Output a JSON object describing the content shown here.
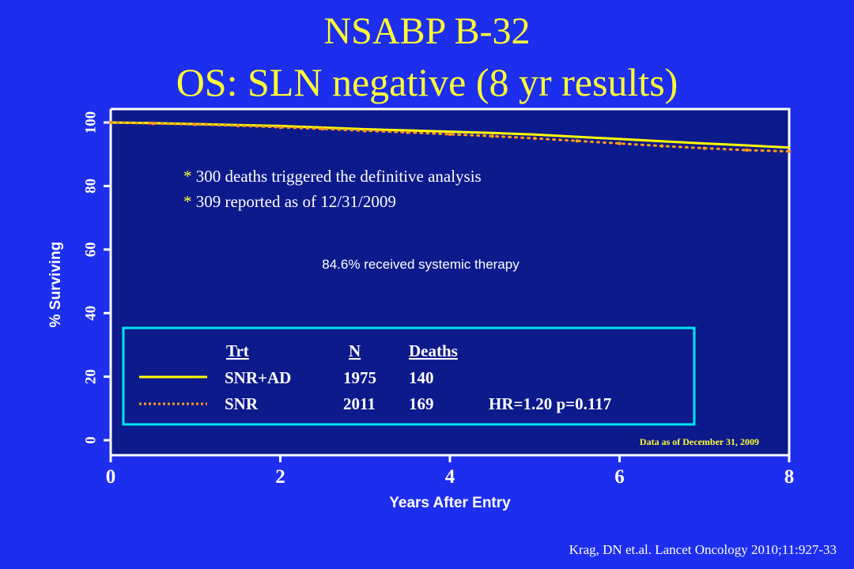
{
  "slide": {
    "title_line1": "NSABP B-32",
    "title_line2": "OS: SLN negative (8 yr results)",
    "citation": "Krag, DN et.al.  Lancet Oncology 2010;11:927-33"
  },
  "colors": {
    "background": "#1d2eee",
    "plot_area": "#0d1a8c",
    "title": "#ffff33",
    "legend_border": "#00e5ee",
    "series_snr_ad": "#ffff00",
    "series_snr": "#ff9a1a"
  },
  "chart_data": {
    "type": "line",
    "title": "",
    "xlabel": "Years After Entry",
    "ylabel": "% Surviving",
    "xlim": [
      0,
      8
    ],
    "ylim": [
      0,
      100
    ],
    "xticks": [
      0,
      2,
      4,
      6,
      8
    ],
    "yticks": [
      0,
      20,
      40,
      60,
      80,
      100
    ],
    "grid": false,
    "annotations": {
      "deaths_line1": "* 300 deaths triggered the definitive analysis",
      "deaths_line2": "* 309 reported as of 12/31/2009",
      "systemic": "84.6% received systemic therapy",
      "data_date": "Data as of  December 31, 2009"
    },
    "legend": {
      "headers": {
        "trt": "Trt",
        "n": "N",
        "deaths": "Deaths"
      },
      "rows": [
        {
          "trt": "SNR+AD",
          "n": "1975",
          "deaths": "140",
          "stats": "",
          "style": "solid"
        },
        {
          "trt": "SNR",
          "n": "2011",
          "deaths": "169",
          "stats": "HR=1.20  p=0.117",
          "style": "dotted"
        }
      ]
    },
    "series": [
      {
        "name": "SNR+AD",
        "x": [
          0,
          0.5,
          1.0,
          1.5,
          2.0,
          2.5,
          3.0,
          3.5,
          4.0,
          4.5,
          5.0,
          5.5,
          6.0,
          6.5,
          7.0,
          7.5,
          8.0
        ],
        "y": [
          100,
          99.8,
          99.5,
          99.2,
          98.9,
          98.4,
          97.9,
          97.5,
          97.1,
          96.7,
          96.2,
          95.5,
          94.8,
          94.1,
          93.4,
          92.8,
          92.1
        ]
      },
      {
        "name": "SNR",
        "x": [
          0,
          0.5,
          1.0,
          1.5,
          2.0,
          2.5,
          3.0,
          3.5,
          4.0,
          4.5,
          5.0,
          5.5,
          6.0,
          6.5,
          7.0,
          7.5,
          8.0
        ],
        "y": [
          100,
          99.7,
          99.4,
          99.0,
          98.5,
          98.0,
          97.4,
          96.9,
          96.3,
          95.7,
          95.0,
          94.2,
          93.4,
          92.6,
          91.9,
          91.3,
          90.9
        ]
      }
    ]
  }
}
